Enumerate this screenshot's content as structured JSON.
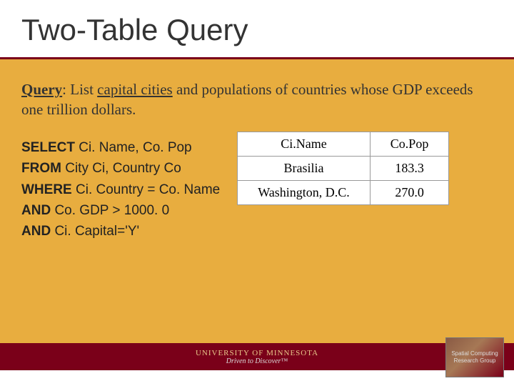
{
  "slide": {
    "title": "Two-Table Query",
    "background_color": "#e8ad3f",
    "title_bg": "#ffffff",
    "title_border": "#7a0019",
    "title_fontsize": 42
  },
  "query": {
    "label": "Query",
    "desc_before": ": List ",
    "underlined": "capital cities",
    "desc_after": " and populations of countries whose GDP exceeds one trillion dollars.",
    "fontsize": 21
  },
  "sql": {
    "lines": [
      {
        "kw": "SELECT",
        "rest": " Ci. Name, Co. Pop"
      },
      {
        "kw": "FROM",
        "rest": " City Ci, Country Co"
      },
      {
        "kw": "WHERE",
        "rest": " Ci. Country = Co. Name"
      },
      {
        "kw": "AND",
        "rest": " Co. GDP > 1000. 0"
      },
      {
        "kw": "AND",
        "rest": " Ci. Capital='Y'"
      }
    ],
    "fontsize": 19
  },
  "result_table": {
    "columns": [
      "Ci.Name",
      "Co.Pop"
    ],
    "rows": [
      [
        "Brasilia",
        "183.3"
      ],
      [
        "Washington, D.C.",
        "270.0"
      ]
    ],
    "border_color": "#999999",
    "bg": "#ffffff",
    "fontsize": 18
  },
  "footer": {
    "bar_color": "#7a0019",
    "university": "UNIVERSITY OF MINNESOTA",
    "tagline": "Driven to Discover™",
    "badge_line1": "Spatial Computing",
    "badge_line2": "Research Group"
  }
}
